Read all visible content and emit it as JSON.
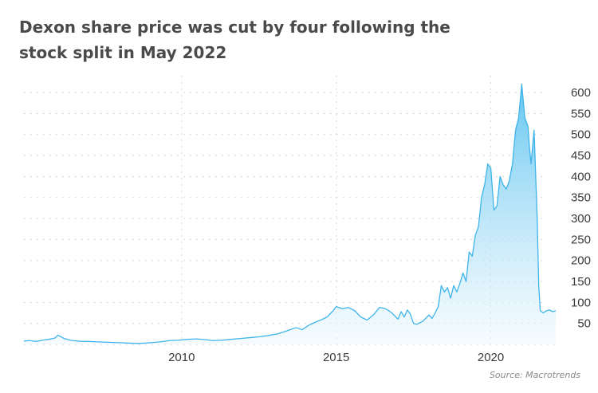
{
  "title": "Dexon share price was cut by four following the stock split in May 2022",
  "source": "Source: Macrotrends",
  "colors": {
    "line": "#3fb4ea",
    "fill_top": "#5cc3f0",
    "fill_bottom": "#eef8fd",
    "grid": "#d5d5d5",
    "text": "#3a3a3a"
  },
  "chart_data": {
    "type": "area",
    "title": "Dexon share price was cut by four following the stock split in May 2022",
    "xlabel": "",
    "ylabel": "",
    "xlim": [
      2004.9,
      2022.1
    ],
    "ylim": [
      0,
      640
    ],
    "grid": true,
    "y_axis_side": "right",
    "x_ticks": [
      2010,
      2015,
      2020
    ],
    "y_ticks": [
      50,
      100,
      150,
      200,
      250,
      300,
      350,
      400,
      450,
      500,
      550,
      600
    ],
    "series": [
      {
        "x": [
          2004.9,
          2005.1,
          2005.3,
          2005.5,
          2005.7,
          2005.9,
          2006.0,
          2006.2,
          2006.4,
          2006.6,
          2006.8,
          2007.0,
          2007.3,
          2007.6,
          2008.0,
          2008.3,
          2008.6,
          2008.8,
          2009.0,
          2009.3,
          2009.6,
          2009.9,
          2010.2,
          2010.5,
          2010.8,
          2011.0,
          2011.3,
          2011.6,
          2011.9,
          2012.2,
          2012.5,
          2012.8,
          2013.1,
          2013.4,
          2013.7,
          2013.9,
          2014.1,
          2014.3,
          2014.5,
          2014.7,
          2014.9,
          2015.0,
          2015.2,
          2015.4,
          2015.6,
          2015.8,
          2016.0,
          2016.2,
          2016.4,
          2016.6,
          2016.8,
          2017.0,
          2017.1,
          2017.2,
          2017.3,
          2017.4,
          2017.5,
          2017.6,
          2017.8,
          2018.0,
          2018.1,
          2018.2,
          2018.3,
          2018.4,
          2018.5,
          2018.6,
          2018.7,
          2018.8,
          2018.9,
          2019.0,
          2019.1,
          2019.2,
          2019.3,
          2019.4,
          2019.5,
          2019.6,
          2019.7,
          2019.8,
          2019.9,
          2020.0,
          2020.1,
          2020.2,
          2020.3,
          2020.4,
          2020.5,
          2020.6,
          2020.7,
          2020.8,
          2020.9,
          2021.0,
          2021.1,
          2021.2,
          2021.25,
          2021.3,
          2021.4,
          2021.5,
          2021.55,
          2021.6,
          2021.7,
          2021.75,
          2021.8,
          2021.9,
          2021.95,
          2022.0,
          2022.1
        ],
        "values": [
          8,
          9,
          7,
          10,
          12,
          15,
          22,
          14,
          10,
          8,
          7,
          7,
          6,
          5,
          4,
          3,
          2,
          3,
          4,
          6,
          9,
          10,
          12,
          13,
          11,
          9,
          10,
          12,
          14,
          16,
          18,
          21,
          25,
          32,
          40,
          35,
          45,
          52,
          58,
          65,
          80,
          90,
          85,
          88,
          80,
          65,
          58,
          70,
          88,
          85,
          75,
          60,
          78,
          65,
          82,
          72,
          50,
          48,
          55,
          70,
          62,
          75,
          90,
          140,
          125,
          135,
          110,
          140,
          125,
          145,
          170,
          150,
          220,
          210,
          260,
          280,
          350,
          380,
          430,
          420,
          320,
          330,
          400,
          380,
          370,
          390,
          430,
          510,
          540,
          620,
          540,
          520,
          470,
          430,
          510,
          300,
          140,
          80,
          75,
          78,
          80,
          82,
          80,
          78,
          80
        ]
      }
    ]
  }
}
